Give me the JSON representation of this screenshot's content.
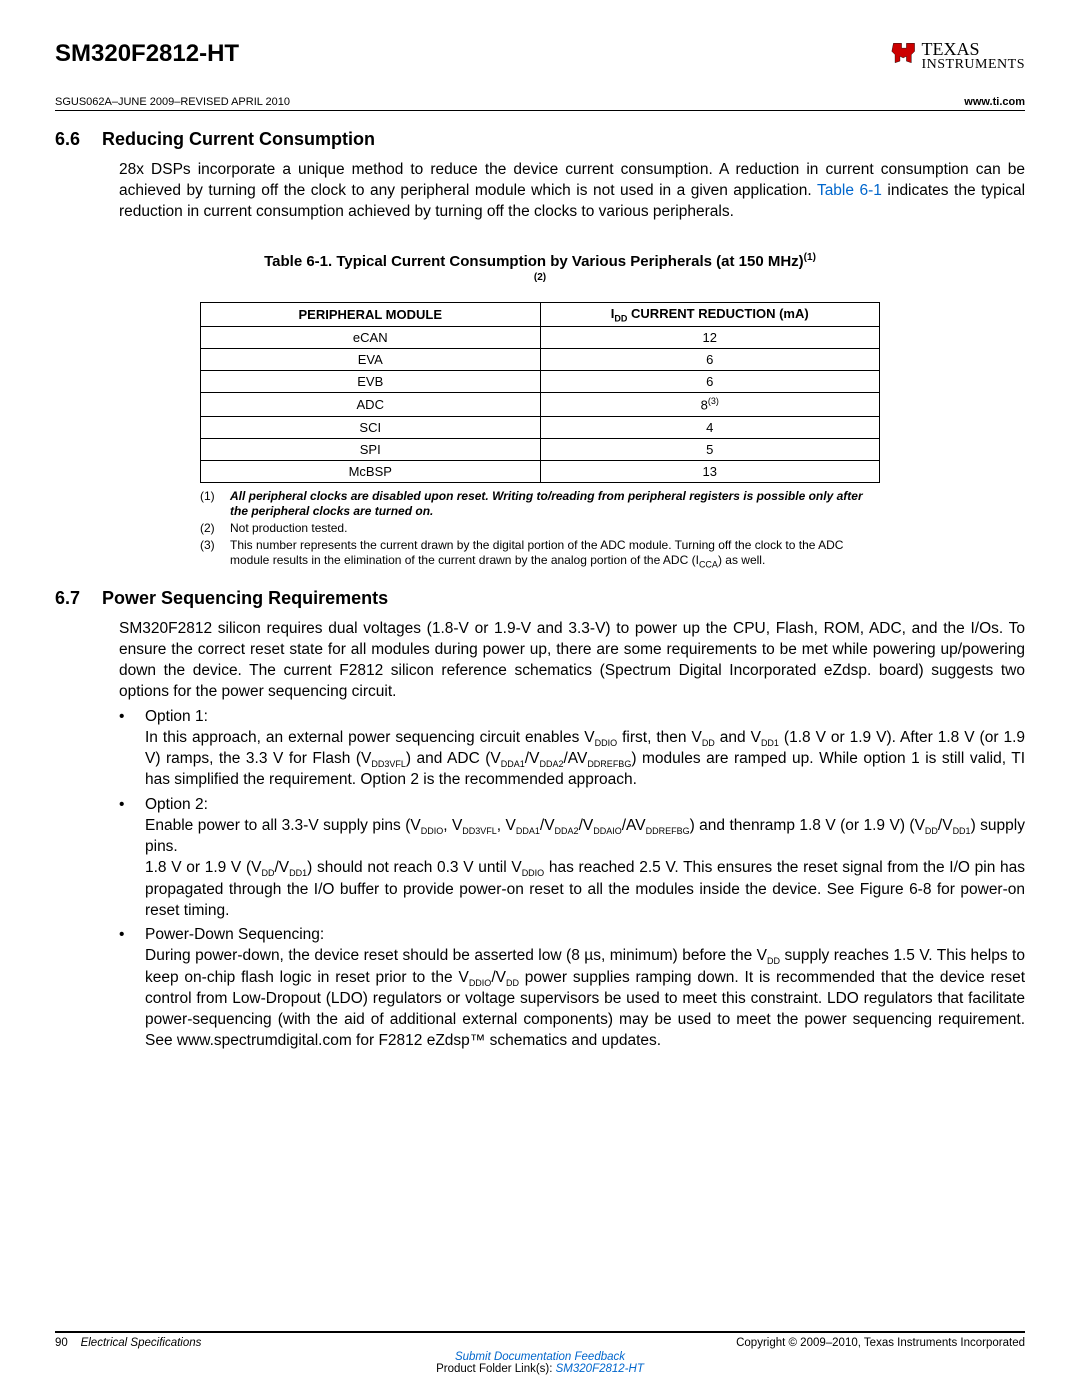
{
  "header": {
    "part_number": "SM320F2812-HT",
    "doc_rev": "SGUS062A–JUNE 2009–REVISED APRIL 2010",
    "url": "www.ti.com",
    "logo_texas": "TEXAS",
    "logo_instr": "INSTRUMENTS"
  },
  "section66": {
    "num": "6.6",
    "title": "Reducing Current Consumption",
    "para_a": "28x DSPs incorporate a unique method to reduce the device current consumption. A reduction in current consumption can be achieved by turning off the clock to any peripheral module which is not used in a given application. ",
    "link": "Table 6-1",
    "para_b": " indicates the typical reduction in current consumption achieved by turning off the clocks to various peripherals."
  },
  "table": {
    "caption_a": "Table 6-1. Typical Current Consumption by Various Peripherals (at 150 MHz)",
    "caption_sup1": "(1)",
    "caption_sup2": "(2)",
    "col1": "PERIPHERAL MODULE",
    "col2_a": "I",
    "col2_sub": "DD",
    "col2_b": " CURRENT REDUCTION (mA)",
    "rows": [
      {
        "m": "eCAN",
        "v": "12"
      },
      {
        "m": "EVA",
        "v": "6"
      },
      {
        "m": "EVB",
        "v": "6"
      },
      {
        "m": "ADC",
        "v": "8",
        "sup": "(3)"
      },
      {
        "m": "SCI",
        "v": "4"
      },
      {
        "m": "SPI",
        "v": "5"
      },
      {
        "m": "McBSP",
        "v": "13"
      }
    ],
    "footnotes": [
      {
        "n": "(1)",
        "t": "All peripheral clocks are disabled upon reset. Writing to/reading from peripheral registers is possible only after the peripheral clocks are turned on.",
        "bold": true
      },
      {
        "n": "(2)",
        "t": "Not production tested."
      },
      {
        "n": "(3)",
        "t_a": "This number represents the current drawn by the digital portion of the ADC module. Turning off the clock to the ADC module results in the elimination of the current drawn by the analog portion of the ADC (I",
        "t_sub": "CCA",
        "t_b": ") as well."
      }
    ]
  },
  "section67": {
    "num": "6.7",
    "title": "Power Sequencing Requirements",
    "para": "SM320F2812 silicon requires dual voltages (1.8-V or 1.9-V and 3.3-V) to power up the CPU, Flash, ROM, ADC, and the I/Os. To ensure the correct reset state for all modules during power up, there are some requirements to be met while powering up/powering down the device. The current F2812 silicon reference schematics (Spectrum Digital Incorporated eZdsp. board) suggests two options for the power sequencing circuit.",
    "options": {
      "opt1_label": "Option 1:",
      "opt1_a": "In this approach, an external power sequencing circuit enables V",
      "opt1_s1": "DDIO",
      "opt1_b": " first, then V",
      "opt1_s2": "DD",
      "opt1_c": " and V",
      "opt1_s3": "DD1",
      "opt1_d": " (1.8 V or 1.9 V). After 1.8 V (or 1.9 V) ramps, the 3.3 V for Flash (V",
      "opt1_s4": "DD3VFL",
      "opt1_e": ") and ADC (V",
      "opt1_s5": "DDA1",
      "opt1_f": "/V",
      "opt1_s6": "DDA2",
      "opt1_g": "/AV",
      "opt1_s7": "DDREFBG",
      "opt1_h": ") modules are ramped up. While option 1 is still valid, TI has simplified the requirement. Option 2 is the recommended approach.",
      "opt2_label": "Option 2:",
      "opt2_a": "Enable power to all 3.3-V supply pins (V",
      "opt2_s1": "DDIO",
      "opt2_b": ", V",
      "opt2_s2": "DD3VFL",
      "opt2_c": ", V",
      "opt2_s3": "DDA1",
      "opt2_d": "/V",
      "opt2_s4": "DDA2",
      "opt2_e": "/V",
      "opt2_s5": "DDAIO",
      "opt2_f": "/AV",
      "opt2_s6": "DDREFBG",
      "opt2_g": ") and thenramp 1.8 V (or 1.9 V) (V",
      "opt2_s7": "DD",
      "opt2_h": "/V",
      "opt2_s8": "DD1",
      "opt2_i": ") supply pins.",
      "opt2_j": "1.8 V or 1.9 V (V",
      "opt2_s9": "DD",
      "opt2_k": "/V",
      "opt2_s10": "DD1",
      "opt2_l": ") should not reach 0.3 V until V",
      "opt2_s11": "DDIO",
      "opt2_m": " has reached 2.5 V. This ensures the reset signal from the I/O pin has propagated through the I/O buffer to provide power-on reset to all the modules inside the device. See Figure 6-8 for power-on reset timing.",
      "pd_label": "Power-Down Sequencing:",
      "pd_a": "During power-down, the device reset should be asserted low (8 µs, minimum) before the V",
      "pd_s1": "DD",
      "pd_b": " supply reaches 1.5 V. This helps to keep on-chip flash logic in reset prior to the V",
      "pd_s2": "DDIO",
      "pd_c": "/V",
      "pd_s3": "DD",
      "pd_d": " power supplies ramping down. It is recommended that the device reset control from Low-Dropout (LDO) regulators or voltage supervisors be used to meet this constraint. LDO regulators that facilitate power-sequencing (with the aid of additional external components) may be used to meet the power sequencing requirement. See www.spectrumdigital.com for F2812 eZdsp™ schematics and updates."
    }
  },
  "footer": {
    "page": "90",
    "section": "Electrical Specifications",
    "copyright": "Copyright © 2009–2010, Texas Instruments Incorporated",
    "feedback": "Submit Documentation Feedback",
    "folder_a": "Product Folder Link(s): ",
    "folder_link": "SM320F2812-HT"
  }
}
